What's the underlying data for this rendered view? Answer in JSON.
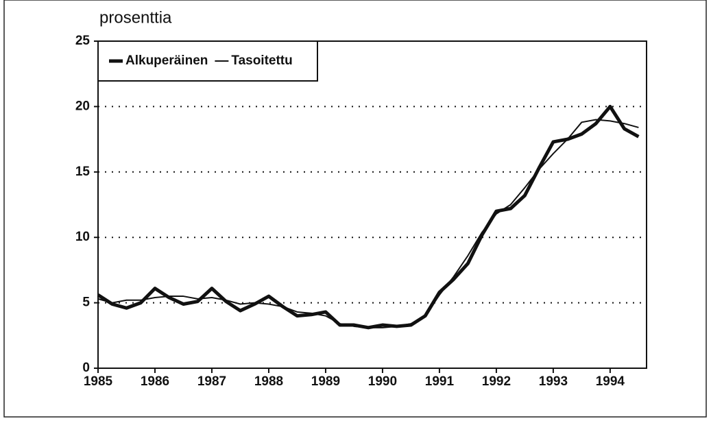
{
  "chart_data": {
    "type": "line",
    "y_label": "prosenttia",
    "x": [
      1985,
      1985.25,
      1985.5,
      1985.75,
      1986,
      1986.25,
      1986.5,
      1986.75,
      1987,
      1987.25,
      1987.5,
      1987.75,
      1988,
      1988.25,
      1988.5,
      1988.75,
      1989,
      1989.25,
      1989.5,
      1989.75,
      1990,
      1990.25,
      1990.5,
      1990.75,
      1991,
      1991.25,
      1991.5,
      1991.75,
      1992,
      1992.25,
      1992.5,
      1992.75,
      1993,
      1993.25,
      1993.5,
      1993.75,
      1994,
      1994.25,
      1994.5
    ],
    "series": [
      {
        "name": "Alkuperäinen",
        "color": "#111111",
        "width": 5,
        "values": [
          5.6,
          4.9,
          4.6,
          5.0,
          6.1,
          5.4,
          4.9,
          5.1,
          6.1,
          5.1,
          4.4,
          4.9,
          5.5,
          4.7,
          4.0,
          4.1,
          4.3,
          3.3,
          3.3,
          3.1,
          3.3,
          3.2,
          3.3,
          4.0,
          5.8,
          6.8,
          8.0,
          10.2,
          12.0,
          12.2,
          13.2,
          15.3,
          17.3,
          17.5,
          17.9,
          18.7,
          20.0,
          18.3,
          17.7
        ]
      },
      {
        "name": "Tasoitettu",
        "color": "#111111",
        "width": 2,
        "values": [
          5.3,
          5.0,
          5.2,
          5.2,
          5.4,
          5.5,
          5.5,
          5.3,
          5.4,
          5.2,
          4.9,
          5.0,
          4.9,
          4.7,
          4.3,
          4.2,
          4.0,
          3.4,
          3.2,
          3.1,
          3.1,
          3.2,
          3.4,
          4.0,
          5.6,
          7.0,
          8.6,
          10.4,
          11.8,
          12.5,
          13.8,
          15.2,
          16.4,
          17.5,
          18.8,
          19.0,
          18.9,
          18.7,
          18.4
        ]
      }
    ],
    "xlim": [
      1985,
      1994.64
    ],
    "xticks": [
      1985,
      1986,
      1987,
      1988,
      1989,
      1990,
      1991,
      1992,
      1993,
      1994
    ],
    "ylim": [
      0,
      25
    ],
    "yticks": [
      0,
      5,
      10,
      15,
      20,
      25
    ],
    "grid": true,
    "legend": "top-left"
  }
}
